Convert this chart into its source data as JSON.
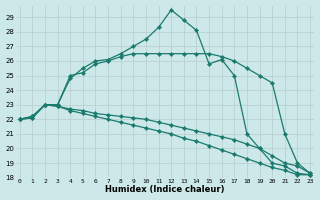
{
  "xlabel": "Humidex (Indice chaleur)",
  "bg_color": "#cce8e8",
  "line_color": "#1a7a6e",
  "xlim": [
    0,
    23
  ],
  "ylim": [
    18,
    29.8
  ],
  "x_ticks": [
    0,
    1,
    2,
    3,
    4,
    5,
    6,
    7,
    8,
    9,
    10,
    11,
    12,
    13,
    14,
    15,
    16,
    17,
    18,
    19,
    20,
    21,
    22,
    23
  ],
  "y_ticks": [
    18,
    19,
    20,
    21,
    22,
    23,
    24,
    25,
    26,
    27,
    28,
    29
  ],
  "series": [
    {
      "x": [
        0,
        1,
        2,
        3,
        4,
        5,
        6,
        7,
        8,
        9,
        10,
        11,
        12,
        13,
        14,
        15,
        16,
        17,
        18,
        19,
        20,
        21,
        22,
        23
      ],
      "y": [
        22.0,
        22.2,
        23.0,
        23.0,
        24.8,
        25.5,
        26.0,
        26.1,
        26.5,
        27.0,
        27.5,
        28.3,
        29.5,
        28.8,
        28.1,
        25.8,
        26.1,
        25.0,
        21.0,
        20.0,
        19.0,
        18.8,
        18.3,
        18.2
      ]
    },
    {
      "x": [
        0,
        1,
        2,
        3,
        4,
        5,
        6,
        7,
        8,
        9,
        10,
        11,
        12,
        13,
        14,
        15,
        16,
        17,
        18,
        19,
        20,
        21,
        22,
        23
      ],
      "y": [
        22.0,
        22.2,
        23.0,
        23.0,
        25.0,
        25.2,
        25.8,
        26.0,
        26.3,
        26.5,
        26.5,
        26.5,
        26.5,
        26.5,
        26.5,
        26.5,
        26.3,
        26.0,
        25.5,
        25.0,
        24.5,
        21.0,
        19.0,
        18.3
      ]
    },
    {
      "x": [
        0,
        1,
        2,
        3,
        4,
        5,
        6,
        7,
        8,
        9,
        10,
        11,
        12,
        13,
        14,
        15,
        16,
        17,
        18,
        19,
        20,
        21,
        22,
        23
      ],
      "y": [
        22.0,
        22.1,
        23.0,
        22.9,
        22.7,
        22.6,
        22.4,
        22.3,
        22.2,
        22.1,
        22.0,
        21.8,
        21.6,
        21.4,
        21.2,
        21.0,
        20.8,
        20.6,
        20.3,
        20.0,
        19.5,
        19.0,
        18.8,
        18.3
      ]
    },
    {
      "x": [
        0,
        1,
        2,
        3,
        4,
        5,
        6,
        7,
        8,
        9,
        10,
        11,
        12,
        13,
        14,
        15,
        16,
        17,
        18,
        19,
        20,
        21,
        22,
        23
      ],
      "y": [
        22.0,
        22.1,
        23.0,
        22.9,
        22.6,
        22.4,
        22.2,
        22.0,
        21.8,
        21.6,
        21.4,
        21.2,
        21.0,
        20.7,
        20.5,
        20.2,
        19.9,
        19.6,
        19.3,
        19.0,
        18.7,
        18.5,
        18.2,
        18.2
      ]
    }
  ]
}
